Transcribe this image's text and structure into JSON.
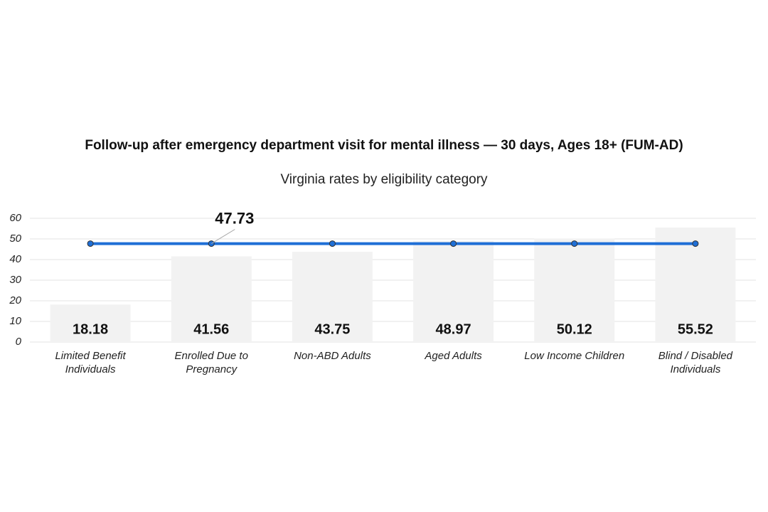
{
  "chart_data": {
    "type": "bar-line",
    "title": "Follow-up after emergency department visit for mental illness — 30 days, Ages 18+ (FUM-AD)",
    "subtitle": "Virginia rates by eligibility category",
    "categories": [
      "Limited Benefit Individuals",
      "Enrolled Due to Pregnancy",
      "Non-ABD Adults",
      "Aged Adults",
      "Low Income Children",
      "Blind / Disabled Individuals"
    ],
    "bars": {
      "color": "#f2f2f2",
      "values": [
        18.18,
        41.56,
        43.75,
        48.97,
        50.12,
        55.52
      ]
    },
    "line": {
      "color": "#1f6fd6",
      "values": [
        47.73,
        47.73,
        47.73,
        47.73,
        47.73,
        47.73
      ],
      "labeled_index": 1
    },
    "ylim": [
      0,
      60
    ],
    "yticks": [
      0,
      10,
      20,
      30,
      40,
      50,
      60
    ],
    "grid": true
  }
}
